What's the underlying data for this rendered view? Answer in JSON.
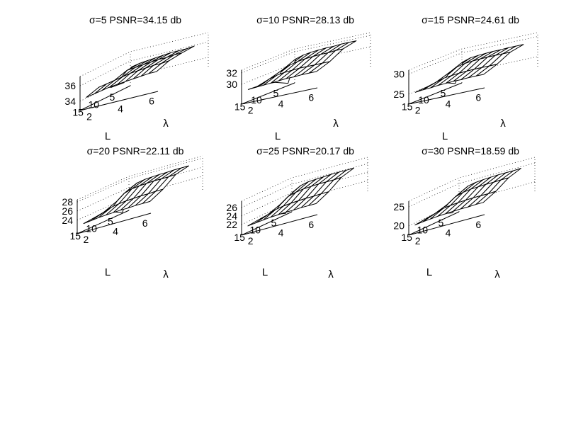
{
  "figure": {
    "background": "#ffffff",
    "line_color": "#000000",
    "surface_fill": "#ffffff",
    "grid_style": "dotted"
  },
  "chart_data": [
    {
      "type": "surface",
      "title": "σ=5 PSNR=34.15 db",
      "xlabel": "L",
      "ylabel": "λ",
      "zlabel": "",
      "L_ticks": [
        "15",
        "10",
        "5"
      ],
      "lambda_ticks": [
        "2",
        "4",
        "6"
      ],
      "z_ticks": [
        34,
        36
      ],
      "zlim": [
        32.8,
        37.2
      ],
      "grid": true,
      "L": [
        15,
        11,
        7,
        3
      ],
      "lambda": [
        1.5,
        2,
        2.5,
        3,
        3.5,
        4,
        4.5,
        5,
        5.5,
        6
      ],
      "z": [
        [
          34.1,
          34.3,
          34.5,
          34.7,
          34.8,
          34.9,
          35.0,
          35.1,
          35.2,
          35.2
        ],
        [
          34.6,
          34.8,
          35.0,
          35.2,
          35.4,
          35.5,
          35.6,
          35.7,
          35.7,
          35.8
        ],
        [
          33.8,
          34.5,
          35.5,
          35.6,
          35.7,
          35.8,
          35.9,
          35.9,
          36.0,
          36.0
        ],
        [
          33.6,
          35.4,
          35.6,
          35.7,
          35.8,
          35.9,
          36.0,
          36.0,
          36.0,
          36.1
        ]
      ]
    },
    {
      "type": "surface",
      "title": "σ=10 PSNR=28.13 db",
      "xlabel": "L",
      "ylabel": "λ",
      "zlabel": "",
      "L_ticks": [
        "15",
        "10",
        "5"
      ],
      "lambda_ticks": [
        "2",
        "4",
        "6"
      ],
      "z_ticks": [
        30,
        32
      ],
      "zlim": [
        26.5,
        32.5
      ],
      "grid": true,
      "L": [
        15,
        11,
        7,
        3
      ],
      "lambda": [
        1.5,
        2,
        2.5,
        3,
        3.5,
        4,
        4.5,
        5,
        5.5,
        6
      ],
      "z": [
        [
          28.6,
          28.7,
          28.8,
          28.9,
          29.0,
          29.1,
          29.1,
          29.2,
          29.2,
          29.2
        ],
        [
          28.5,
          29.2,
          29.6,
          29.8,
          29.9,
          30.0,
          30.0,
          30.0,
          30.0,
          30.0
        ],
        [
          28.0,
          29.9,
          30.5,
          30.8,
          31.0,
          31.1,
          31.2,
          31.2,
          31.3,
          31.3
        ],
        [
          26.9,
          30.9,
          31.3,
          31.5,
          31.6,
          31.7,
          31.7,
          31.8,
          31.8,
          31.8
        ]
      ]
    },
    {
      "type": "surface",
      "title": "σ=15 PSNR=24.61 db",
      "xlabel": "L",
      "ylabel": "λ",
      "zlabel": "",
      "L_ticks": [
        "15",
        "10",
        "5"
      ],
      "lambda_ticks": [
        "2",
        "4",
        "6"
      ],
      "z_ticks": [
        25,
        30
      ],
      "zlim": [
        22.5,
        31
      ],
      "grid": true,
      "L": [
        15,
        11,
        7,
        3
      ],
      "lambda": [
        1.5,
        2,
        2.5,
        3,
        3.5,
        4,
        4.5,
        5,
        5.5,
        6
      ],
      "z": [
        [
          24.8,
          25.0,
          25.1,
          25.3,
          25.4,
          25.5,
          25.5,
          25.6,
          25.6,
          25.6
        ],
        [
          25.0,
          25.6,
          26.2,
          26.4,
          26.6,
          26.7,
          26.8,
          26.8,
          26.8,
          26.8
        ],
        [
          24.6,
          26.7,
          27.7,
          28.1,
          28.3,
          28.4,
          28.5,
          28.5,
          28.5,
          28.5
        ],
        [
          23.0,
          28.0,
          28.6,
          28.8,
          28.9,
          29.0,
          29.0,
          29.1,
          29.1,
          29.1
        ]
      ]
    },
    {
      "type": "surface",
      "title": "σ=20 PSNR=22.11 db",
      "xlabel": "L",
      "ylabel": "λ",
      "zlabel": "",
      "L_ticks": [
        "15",
        "10",
        "5"
      ],
      "lambda_ticks": [
        "2",
        "4",
        "6"
      ],
      "z_ticks": [
        24,
        26,
        28
      ],
      "zlim": [
        21,
        28.5
      ],
      "grid": true,
      "L": [
        15,
        11,
        7,
        3
      ],
      "lambda": [
        1.5,
        2,
        2.5,
        3,
        3.5,
        4,
        4.5,
        5,
        5.5,
        6
      ],
      "z": [
        [
          22.6,
          22.8,
          23.0,
          23.1,
          23.2,
          23.3,
          23.3,
          23.4,
          23.4,
          23.4
        ],
        [
          22.9,
          23.4,
          24.0,
          24.3,
          24.5,
          24.6,
          24.7,
          24.7,
          24.8,
          24.8
        ],
        [
          22.6,
          24.5,
          25.8,
          26.3,
          26.5,
          26.6,
          26.7,
          26.7,
          26.7,
          26.8
        ],
        [
          21.2,
          26.0,
          26.8,
          27.1,
          27.2,
          27.3,
          27.3,
          27.4,
          27.4,
          27.4
        ]
      ]
    },
    {
      "type": "surface",
      "title": "σ=25 PSNR=20.17 db",
      "xlabel": "L",
      "ylabel": "λ",
      "zlabel": "",
      "L_ticks": [
        "15",
        "10",
        "5"
      ],
      "lambda_ticks": [
        "2",
        "4",
        "6"
      ],
      "z_ticks": [
        22,
        24,
        26
      ],
      "zlim": [
        19.5,
        27.5
      ],
      "grid": true,
      "L": [
        15,
        11,
        7,
        3
      ],
      "lambda": [
        1.5,
        2,
        2.5,
        3,
        3.5,
        4,
        4.5,
        5,
        5.5,
        6
      ],
      "z": [
        [
          21.0,
          21.2,
          21.4,
          21.6,
          21.7,
          21.8,
          21.8,
          21.9,
          21.9,
          21.9
        ],
        [
          21.3,
          21.8,
          22.5,
          22.8,
          23.0,
          23.1,
          23.2,
          23.2,
          23.3,
          23.3
        ],
        [
          20.9,
          22.9,
          24.2,
          24.7,
          25.0,
          25.1,
          25.2,
          25.2,
          25.2,
          25.3
        ],
        [
          19.8,
          24.4,
          25.4,
          25.8,
          25.9,
          26.0,
          26.1,
          26.1,
          26.1,
          26.1
        ]
      ]
    },
    {
      "type": "surface",
      "title": "σ=30 PSNR=18.59 db",
      "xlabel": "L",
      "ylabel": "λ",
      "zlabel": "",
      "L_ticks": [
        "15",
        "10",
        "5"
      ],
      "lambda_ticks": [
        "2",
        "4",
        "6"
      ],
      "z_ticks": [
        20,
        25
      ],
      "zlim": [
        17.5,
        26.5
      ],
      "grid": true,
      "L": [
        15,
        11,
        7,
        3
      ],
      "lambda": [
        1.5,
        2,
        2.5,
        3,
        3.5,
        4,
        4.5,
        5,
        5.5,
        6
      ],
      "z": [
        [
          19.4,
          19.7,
          19.9,
          20.1,
          20.2,
          20.3,
          20.4,
          20.4,
          20.5,
          20.5
        ],
        [
          19.8,
          20.4,
          21.1,
          21.4,
          21.6,
          21.7,
          21.8,
          21.8,
          21.8,
          21.9
        ],
        [
          19.3,
          21.3,
          22.7,
          23.3,
          23.6,
          23.7,
          23.8,
          23.8,
          23.9,
          23.9
        ],
        [
          18.0,
          22.8,
          24.0,
          24.4,
          24.6,
          24.7,
          24.8,
          24.8,
          24.8,
          24.9
        ]
      ]
    }
  ]
}
